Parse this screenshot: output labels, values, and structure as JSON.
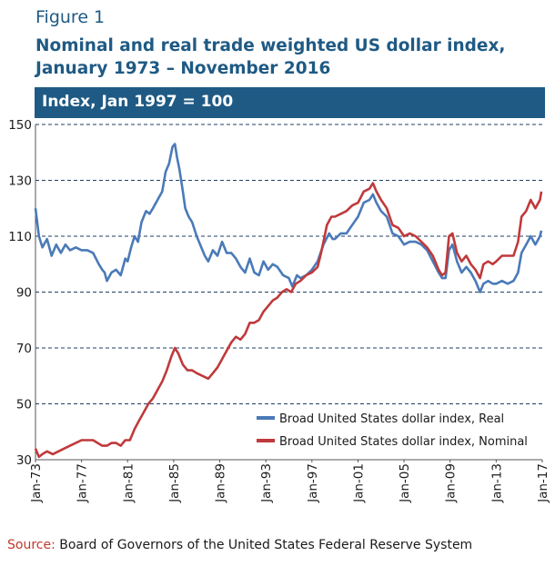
{
  "figure": {
    "label": "Figure 1",
    "title": "Nominal and real trade weighted US dollar index, January 1973 – November 2016"
  },
  "source": {
    "label": "Source:",
    "text": " Board of Governors of the United States Federal Reserve System"
  },
  "colors": {
    "brand": "#1f5a84",
    "real": "#4a7ab8",
    "nominal": "#c0393b",
    "source_label": "#c0392b"
  },
  "chart_data": {
    "type": "line",
    "unit_label": "Index, Jan 1997 = 100",
    "xlabel": "",
    "ylabel": "",
    "ylim": [
      30,
      150
    ],
    "xlim": [
      1973.0,
      2017.0
    ],
    "yticks": [
      30,
      50,
      70,
      90,
      110,
      130,
      150
    ],
    "xticks": [
      {
        "x": 1973,
        "label": "Jan-73"
      },
      {
        "x": 1977,
        "label": "Jan-77"
      },
      {
        "x": 1981,
        "label": "Jan-81"
      },
      {
        "x": 1985,
        "label": "Jan-85"
      },
      {
        "x": 1989,
        "label": "Jan-89"
      },
      {
        "x": 1993,
        "label": "Jan-93"
      },
      {
        "x": 1997,
        "label": "Jan-97"
      },
      {
        "x": 2001,
        "label": "Jan-01"
      },
      {
        "x": 2005,
        "label": "Jan-05"
      },
      {
        "x": 2009,
        "label": "Jan-09"
      },
      {
        "x": 2013,
        "label": "Jan-13"
      },
      {
        "x": 2017,
        "label": "Jan-17"
      }
    ],
    "grid": true,
    "legend_position": "bottom-right",
    "series": [
      {
        "name": "Broad United States dollar index, Real",
        "color": "#4a7ab8",
        "points": [
          [
            1973.0,
            120
          ],
          [
            1973.3,
            110
          ],
          [
            1973.6,
            106
          ],
          [
            1974.0,
            109
          ],
          [
            1974.4,
            103
          ],
          [
            1974.8,
            107
          ],
          [
            1975.2,
            104
          ],
          [
            1975.6,
            107
          ],
          [
            1976.0,
            105
          ],
          [
            1976.5,
            106
          ],
          [
            1977.0,
            105
          ],
          [
            1977.5,
            105
          ],
          [
            1978.0,
            104
          ],
          [
            1978.5,
            100
          ],
          [
            1978.8,
            98
          ],
          [
            1979.0,
            97
          ],
          [
            1979.2,
            94
          ],
          [
            1979.6,
            97
          ],
          [
            1980.0,
            98
          ],
          [
            1980.4,
            96
          ],
          [
            1980.8,
            102
          ],
          [
            1981.0,
            101
          ],
          [
            1981.3,
            106
          ],
          [
            1981.6,
            110
          ],
          [
            1981.9,
            108
          ],
          [
            1982.2,
            115
          ],
          [
            1982.6,
            119
          ],
          [
            1982.9,
            118
          ],
          [
            1983.2,
            120
          ],
          [
            1983.6,
            123
          ],
          [
            1984.0,
            126
          ],
          [
            1984.3,
            133
          ],
          [
            1984.6,
            136
          ],
          [
            1984.9,
            142
          ],
          [
            1985.1,
            143
          ],
          [
            1985.3,
            138
          ],
          [
            1985.5,
            134
          ],
          [
            1985.8,
            126
          ],
          [
            1986.0,
            120
          ],
          [
            1986.3,
            117
          ],
          [
            1986.6,
            115
          ],
          [
            1987.0,
            110
          ],
          [
            1987.3,
            107
          ],
          [
            1987.7,
            103
          ],
          [
            1988.0,
            101
          ],
          [
            1988.4,
            105
          ],
          [
            1988.8,
            103
          ],
          [
            1989.2,
            108
          ],
          [
            1989.6,
            104
          ],
          [
            1990.0,
            104
          ],
          [
            1990.4,
            102
          ],
          [
            1990.8,
            99
          ],
          [
            1991.2,
            97
          ],
          [
            1991.6,
            102
          ],
          [
            1992.0,
            97
          ],
          [
            1992.4,
            96
          ],
          [
            1992.8,
            101
          ],
          [
            1993.2,
            98
          ],
          [
            1993.6,
            100
          ],
          [
            1994.0,
            99
          ],
          [
            1994.5,
            96
          ],
          [
            1995.0,
            95
          ],
          [
            1995.3,
            92
          ],
          [
            1995.7,
            96
          ],
          [
            1996.0,
            95
          ],
          [
            1996.5,
            96
          ],
          [
            1997.0,
            98
          ],
          [
            1997.5,
            101
          ],
          [
            1998.0,
            107
          ],
          [
            1998.5,
            111
          ],
          [
            1998.8,
            109
          ],
          [
            1999.0,
            109
          ],
          [
            1999.5,
            111
          ],
          [
            2000.0,
            111
          ],
          [
            2000.5,
            114
          ],
          [
            2001.0,
            117
          ],
          [
            2001.5,
            122
          ],
          [
            2002.0,
            123
          ],
          [
            2002.3,
            125
          ],
          [
            2002.6,
            122
          ],
          [
            2003.0,
            119
          ],
          [
            2003.5,
            117
          ],
          [
            2004.0,
            111
          ],
          [
            2004.5,
            110
          ],
          [
            2005.0,
            107
          ],
          [
            2005.5,
            108
          ],
          [
            2006.0,
            108
          ],
          [
            2006.5,
            107
          ],
          [
            2007.0,
            105
          ],
          [
            2007.5,
            101
          ],
          [
            2008.0,
            97
          ],
          [
            2008.3,
            95
          ],
          [
            2008.6,
            95
          ],
          [
            2008.9,
            105
          ],
          [
            2009.2,
            107
          ],
          [
            2009.6,
            101
          ],
          [
            2010.0,
            97
          ],
          [
            2010.4,
            99
          ],
          [
            2010.8,
            97
          ],
          [
            2011.2,
            94
          ],
          [
            2011.6,
            90
          ],
          [
            2011.9,
            93
          ],
          [
            2012.3,
            94
          ],
          [
            2012.7,
            93
          ],
          [
            2013.0,
            93
          ],
          [
            2013.5,
            94
          ],
          [
            2014.0,
            93
          ],
          [
            2014.5,
            94
          ],
          [
            2014.9,
            97
          ],
          [
            2015.2,
            104
          ],
          [
            2015.6,
            107
          ],
          [
            2016.0,
            110
          ],
          [
            2016.4,
            107
          ],
          [
            2016.8,
            110
          ],
          [
            2016.92,
            112
          ]
        ]
      },
      {
        "name": "Broad United States dollar index, Nominal",
        "color": "#c0393b",
        "points": [
          [
            1973.0,
            34
          ],
          [
            1973.3,
            31
          ],
          [
            1973.6,
            32
          ],
          [
            1974.0,
            33
          ],
          [
            1974.5,
            32
          ],
          [
            1975.0,
            33
          ],
          [
            1975.5,
            34
          ],
          [
            1976.0,
            35
          ],
          [
            1976.5,
            36
          ],
          [
            1977.0,
            37
          ],
          [
            1977.5,
            37
          ],
          [
            1978.0,
            37
          ],
          [
            1978.4,
            36
          ],
          [
            1978.8,
            35
          ],
          [
            1979.2,
            35
          ],
          [
            1979.6,
            36
          ],
          [
            1980.0,
            36
          ],
          [
            1980.4,
            35
          ],
          [
            1980.8,
            37
          ],
          [
            1981.2,
            37
          ],
          [
            1981.6,
            41
          ],
          [
            1982.0,
            44
          ],
          [
            1982.4,
            47
          ],
          [
            1982.8,
            50
          ],
          [
            1983.2,
            52
          ],
          [
            1983.6,
            55
          ],
          [
            1984.0,
            58
          ],
          [
            1984.4,
            62
          ],
          [
            1984.8,
            67
          ],
          [
            1985.1,
            70
          ],
          [
            1985.4,
            68
          ],
          [
            1985.8,
            64
          ],
          [
            1986.2,
            62
          ],
          [
            1986.6,
            62
          ],
          [
            1987.0,
            61
          ],
          [
            1987.5,
            60
          ],
          [
            1988.0,
            59
          ],
          [
            1988.4,
            61
          ],
          [
            1988.8,
            63
          ],
          [
            1989.2,
            66
          ],
          [
            1989.6,
            69
          ],
          [
            1990.0,
            72
          ],
          [
            1990.4,
            74
          ],
          [
            1990.8,
            73
          ],
          [
            1991.2,
            75
          ],
          [
            1991.6,
            79
          ],
          [
            1992.0,
            79
          ],
          [
            1992.4,
            80
          ],
          [
            1992.8,
            83
          ],
          [
            1993.2,
            85
          ],
          [
            1993.6,
            87
          ],
          [
            1994.0,
            88
          ],
          [
            1994.4,
            90
          ],
          [
            1994.8,
            91
          ],
          [
            1995.2,
            90
          ],
          [
            1995.6,
            93
          ],
          [
            1996.0,
            94
          ],
          [
            1996.5,
            96
          ],
          [
            1997.0,
            97
          ],
          [
            1997.5,
            99
          ],
          [
            1997.8,
            104
          ],
          [
            1998.0,
            108
          ],
          [
            1998.3,
            114
          ],
          [
            1998.7,
            117
          ],
          [
            1999.0,
            117
          ],
          [
            1999.5,
            118
          ],
          [
            2000.0,
            119
          ],
          [
            2000.5,
            121
          ],
          [
            2001.0,
            122
          ],
          [
            2001.5,
            126
          ],
          [
            2002.0,
            127
          ],
          [
            2002.3,
            129
          ],
          [
            2002.6,
            126
          ],
          [
            2003.0,
            123
          ],
          [
            2003.5,
            120
          ],
          [
            2004.0,
            114
          ],
          [
            2004.5,
            113
          ],
          [
            2005.0,
            110
          ],
          [
            2005.5,
            111
          ],
          [
            2006.0,
            110
          ],
          [
            2006.5,
            108
          ],
          [
            2007.0,
            106
          ],
          [
            2007.5,
            103
          ],
          [
            2008.0,
            98
          ],
          [
            2008.3,
            96
          ],
          [
            2008.6,
            97
          ],
          [
            2008.9,
            110
          ],
          [
            2009.2,
            111
          ],
          [
            2009.6,
            104
          ],
          [
            2010.0,
            101
          ],
          [
            2010.4,
            103
          ],
          [
            2010.8,
            100
          ],
          [
            2011.2,
            98
          ],
          [
            2011.6,
            95
          ],
          [
            2011.9,
            100
          ],
          [
            2012.3,
            101
          ],
          [
            2012.7,
            100
          ],
          [
            2013.0,
            101
          ],
          [
            2013.5,
            103
          ],
          [
            2014.0,
            103
          ],
          [
            2014.5,
            103
          ],
          [
            2014.9,
            108
          ],
          [
            2015.2,
            117
          ],
          [
            2015.6,
            119
          ],
          [
            2016.0,
            123
          ],
          [
            2016.4,
            120
          ],
          [
            2016.8,
            123
          ],
          [
            2016.92,
            126
          ]
        ]
      }
    ]
  }
}
